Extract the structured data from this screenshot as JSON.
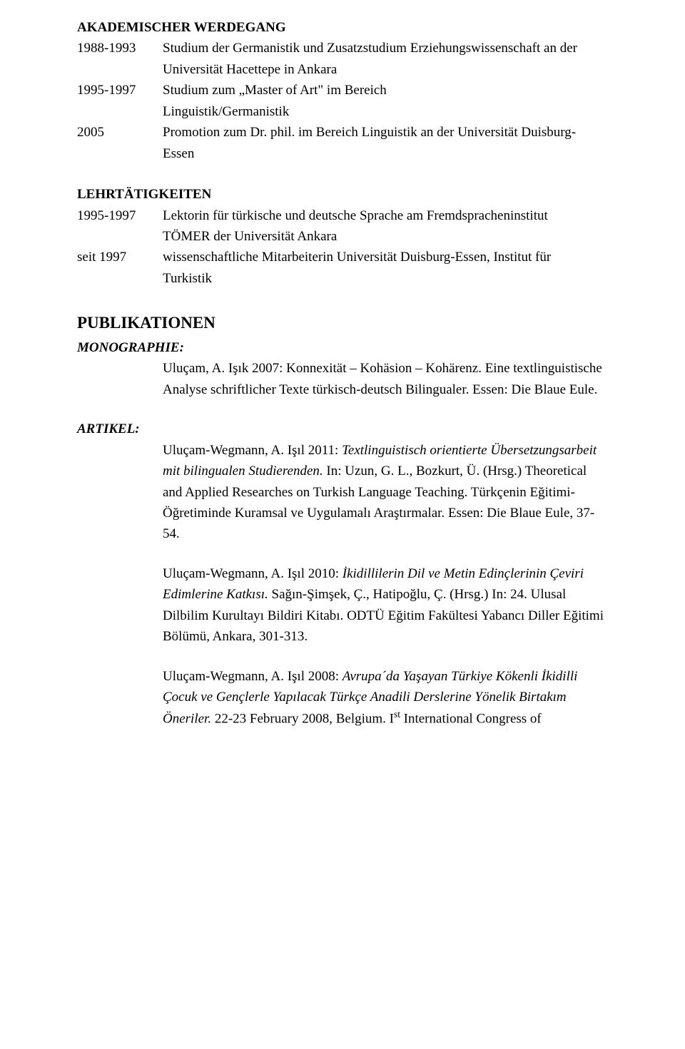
{
  "headings": {
    "akademischer": "AKADEMISCHER WERDEGANG",
    "lehr": "LEHRTÄTIGKEITEN",
    "pubs": "PUBLIKATIONEN",
    "mono": "MONOGRAPHIE:",
    "artikel": "ARTIKEL:"
  },
  "akad": {
    "r1_year": "1988-1993",
    "r1_l1": "Studium der Germanistik  und Zusatzstudium Erziehungswissenschaft an der",
    "r1_l2": "Universität Hacettepe in Ankara",
    "r2_year": "1995-1997",
    "r2_l1": "Studium zum „Master of Art\" im Bereich",
    "r2_l2": "Linguistik/Germanistik",
    "r3_year": "2005",
    "r3_l1": "Promotion zum Dr. phil. im Bereich Linguistik an der Universität Duisburg-",
    "r3_l2": "Essen"
  },
  "lehr": {
    "r1_year": "1995-1997",
    "r1_l1": "Lektorin für türkische und deutsche Sprache am  Fremdspracheninstitut",
    "r1_l2": "TÖMER der Universität Ankara",
    "r2_year": "seit 1997",
    "r2_l1": "wissenschaftliche Mitarbeiterin Universität Duisburg-Essen, Institut für",
    "r2_l2": "Turkistik"
  },
  "mono": {
    "e1": "Uluçam, A. Işık 2007:   Konnexität – Kohäsion – Kohärenz. Eine textlinguistische Analyse schriftlicher Texte türkisch-deutsch Bilingualer. Essen: Die Blaue Eule."
  },
  "artikel": {
    "a1_auth": "Uluçam-Wegmann, A. Işıl 2011: ",
    "a1_ital": "Textlinguistisch orientierte Übersetzungsarbeit mit bilingualen Studierenden.",
    "a1_rest": " In: Uzun, G. L., Bozkurt, Ü. (Hrsg.) Theoretical  and Applied Researches on Turkish Language Teaching. Türkçenin Eğitimi-Öğretiminde Kuramsal ve Uygulamalı Araştırmalar. Essen: Die Blaue Eule, 37-54.",
    "a2_auth": "Uluçam-Wegmann, A. Işıl 2010: ",
    "a2_ital": "İkidillilerin Dil ve Metin Edinçlerinin Çeviri Edimlerine Katkısı.",
    "a2_rest": " Sağın-Şimşek, Ç., Hatipoğlu, Ç. (Hrsg.) In: 24. Ulusal Dilbilim Kurultayı Bildiri Kitabı. ODTÜ Eğitim Fakültesi Yabancı Diller Eğitimi Bölümü, Ankara, 301-313.",
    "a3_auth": "Uluçam-Wegmann, A. Işıl 2008: ",
    "a3_ital": "Avrupa´da Yaşayan Türkiye Kökenli İkidilli Çocuk ve Gençlerle Yapılacak Türkçe Anadili  Derslerine Yönelik Birtakım Öneriler.",
    "a3_rest1": " 22-23 February 2008, Belgium. I",
    "a3_sup": "st",
    "a3_rest2": " International Congress of"
  }
}
